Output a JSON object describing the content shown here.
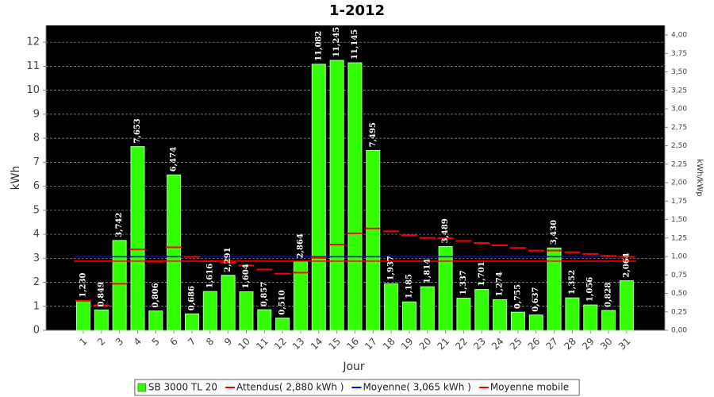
{
  "chart_data": {
    "type": "bar",
    "title": "1-2012",
    "x_label": "Jour",
    "y_label": "kWh",
    "y2_label": "kWh/kWp",
    "categories": [
      "1",
      "2",
      "3",
      "4",
      "5",
      "6",
      "7",
      "8",
      "9",
      "10",
      "11",
      "12",
      "13",
      "14",
      "15",
      "16",
      "17",
      "18",
      "19",
      "20",
      "21",
      "22",
      "23",
      "24",
      "25",
      "26",
      "27",
      "28",
      "29",
      "30",
      "31"
    ],
    "series": [
      {
        "name": "SB 3000 TL 20",
        "color": "#33ff00",
        "values": [
          1.23,
          0.849,
          3.742,
          7.653,
          0.806,
          6.474,
          0.686,
          1.616,
          2.291,
          1.604,
          0.857,
          0.51,
          2.864,
          11.082,
          11.245,
          11.145,
          7.495,
          1.937,
          1.185,
          1.814,
          3.489,
          1.337,
          1.701,
          1.274,
          0.755,
          0.637,
          3.43,
          1.352,
          1.056,
          0.828,
          2.064
        ],
        "value_labels": [
          "1,230",
          "0,849",
          "3,742",
          "7,653",
          "0,806",
          "6,474",
          "0,686",
          "1,616",
          "2,291",
          "1,604",
          "0,857",
          "0,510",
          "2,864",
          "11,082",
          "11,245",
          "11,145",
          "7,495",
          "1,937",
          "1,185",
          "1,814",
          "3,489",
          "1,337",
          "1,701",
          "1,274",
          "0,755",
          "0,637",
          "3,430",
          "1,352",
          "1,056",
          "0,828",
          "2,064"
        ]
      }
    ],
    "reference_lines": [
      {
        "name": "Attendus( 2,880 kWh )",
        "color": "#ff0000",
        "value": 2.88
      },
      {
        "name": "Moyenne( 3,065 kWh )",
        "color": "#0000ff",
        "value": 3.065
      }
    ],
    "moving_average": {
      "name": "Moyenne mobile",
      "color": "#ff0000",
      "values": [
        1.23,
        1.04,
        1.94,
        3.37,
        2.86,
        3.46,
        3.06,
        2.88,
        2.82,
        2.7,
        2.53,
        2.36,
        2.4,
        3.02,
        3.57,
        4.04,
        4.24,
        4.12,
        3.96,
        3.85,
        3.84,
        3.72,
        3.64,
        3.54,
        3.43,
        3.32,
        3.32,
        3.25,
        3.18,
        3.1,
        3.06
      ]
    },
    "ylim": [
      0,
      12.7
    ],
    "yticks": [
      0,
      1,
      2,
      3,
      4,
      5,
      6,
      7,
      8,
      9,
      10,
      11,
      12
    ],
    "y2lim": [
      0,
      4.13
    ],
    "y2ticks": [
      {
        "value": 0,
        "label": "0,00"
      },
      {
        "value": 0.25,
        "label": "0,25"
      },
      {
        "value": 0.5,
        "label": "0,50"
      },
      {
        "value": 0.75,
        "label": "0,75"
      },
      {
        "value": 1,
        "label": "1,00"
      },
      {
        "value": 1.25,
        "label": "1,25"
      },
      {
        "value": 1.5,
        "label": "1,50"
      },
      {
        "value": 1.75,
        "label": "1,75"
      },
      {
        "value": 2,
        "label": "2,00"
      },
      {
        "value": 2.25,
        "label": "2,25"
      },
      {
        "value": 2.5,
        "label": "2,50"
      },
      {
        "value": 2.75,
        "label": "2,75"
      },
      {
        "value": 3,
        "label": "3,00"
      },
      {
        "value": 3.25,
        "label": "3,25"
      },
      {
        "value": 3.5,
        "label": "3,50"
      },
      {
        "value": 3.75,
        "label": "3,75"
      },
      {
        "value": 4,
        "label": "4,00"
      }
    ],
    "grid": true
  }
}
